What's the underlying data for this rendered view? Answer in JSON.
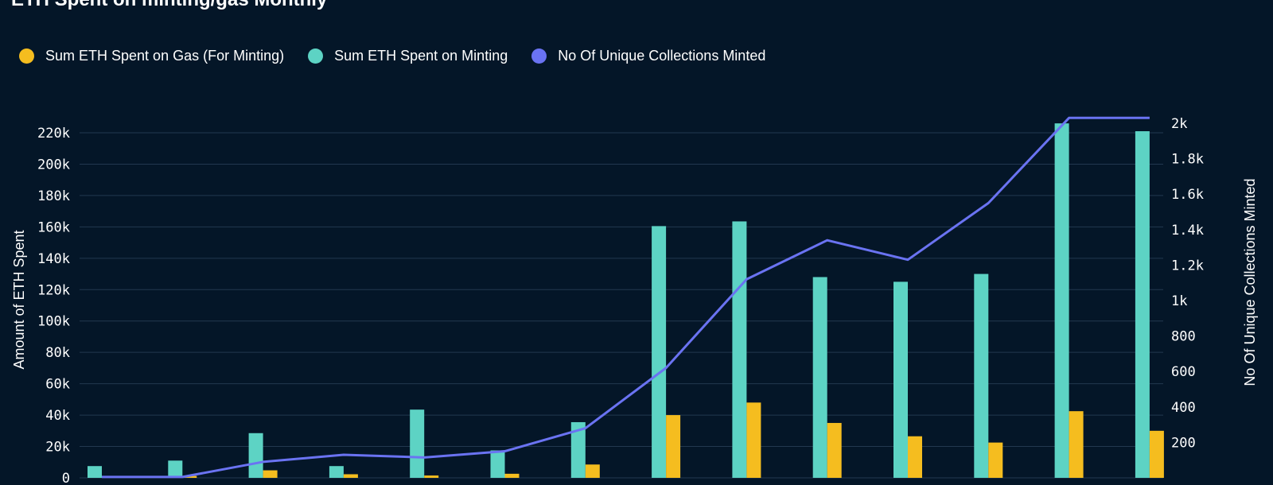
{
  "chart_data": {
    "type": "bar",
    "title": "ETH Spent on minting/gas Monthly",
    "ylabel": "Amount of ETH Spent",
    "y2label": "No Of Unique Collections Minted",
    "ylim": [
      0,
      220000
    ],
    "y2lim": [
      0,
      2000
    ],
    "grid": true,
    "legend_position": "top-left",
    "y_ticks": [
      {
        "value": 0,
        "label": "0"
      },
      {
        "value": 20000,
        "label": "20k"
      },
      {
        "value": 40000,
        "label": "40k"
      },
      {
        "value": 60000,
        "label": "60k"
      },
      {
        "value": 80000,
        "label": "80k"
      },
      {
        "value": 100000,
        "label": "100k"
      },
      {
        "value": 120000,
        "label": "120k"
      },
      {
        "value": 140000,
        "label": "140k"
      },
      {
        "value": 160000,
        "label": "160k"
      },
      {
        "value": 180000,
        "label": "180k"
      },
      {
        "value": 200000,
        "label": "200k"
      },
      {
        "value": 220000,
        "label": "220k"
      }
    ],
    "y2_ticks": [
      {
        "value": 200,
        "label": "200"
      },
      {
        "value": 400,
        "label": "400"
      },
      {
        "value": 600,
        "label": "600"
      },
      {
        "value": 800,
        "label": "800"
      },
      {
        "value": 1000,
        "label": "1k"
      },
      {
        "value": 1200,
        "label": "1.2k"
      },
      {
        "value": 1400,
        "label": "1.4k"
      },
      {
        "value": 1600,
        "label": "1.6k"
      },
      {
        "value": 1800,
        "label": "1.8k"
      },
      {
        "value": 2000,
        "label": "2k"
      }
    ],
    "series": [
      {
        "name": "Sum ETH Spent on Gas (For Minting)",
        "kind": "bar",
        "axis": "left",
        "color": "#f5bd1f",
        "values": [
          700,
          1200,
          4800,
          2300,
          1500,
          2600,
          8500,
          40000,
          48000,
          35000,
          26500,
          22500,
          42500,
          30000
        ]
      },
      {
        "name": "Sum ETH Spent on Minting",
        "kind": "bar",
        "axis": "left",
        "color": "#5dd3c4",
        "values": [
          7500,
          11000,
          28500,
          7500,
          43500,
          17500,
          35500,
          160500,
          163500,
          128000,
          125000,
          130000,
          226000,
          221000
        ]
      },
      {
        "name": "No Of Unique Collections Minted",
        "kind": "line",
        "axis": "right",
        "color": "#6a73f2",
        "values": [
          5,
          5,
          90,
          130,
          115,
          150,
          280,
          620,
          1120,
          1340,
          1230,
          1550,
          2030,
          2030
        ]
      }
    ]
  }
}
